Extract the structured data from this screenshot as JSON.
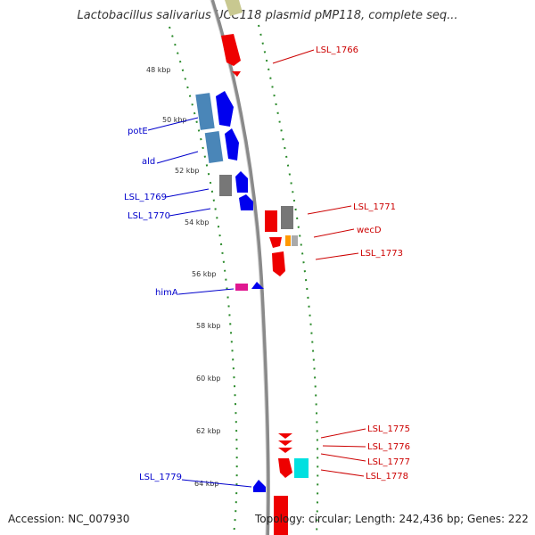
{
  "title": "Lactobacillus salivarius UCC118 plasmid pMP118, complete seq...",
  "footer": {
    "accession": "Accession: NC_007930",
    "summary": "Topology: circular; Length: 242,436 bp; Genes: 222"
  },
  "scale_ticks": [
    "48 kbp",
    "50 kbp",
    "52 kbp",
    "54 kbp",
    "56 kbp",
    "58 kbp",
    "60 kbp",
    "62 kbp",
    "64 kbp"
  ],
  "left_labels": [
    "potE",
    "ald",
    "LSL_1769",
    "LSL_1770",
    "himA",
    "LSL_1779"
  ],
  "right_labels": [
    "LSL_1766",
    "LSL_1771",
    "wecD",
    "LSL_1773",
    "LSL_1775",
    "LSL_1776",
    "LSL_1777",
    "LSL_1778"
  ],
  "colors": {
    "forward_strand": "#0000ee",
    "reverse_strand": "#ee0000",
    "backbone": "#888888",
    "gc_dots": "#2a8a2a",
    "left_label": "#0000cc",
    "right_label": "#cc0000"
  }
}
